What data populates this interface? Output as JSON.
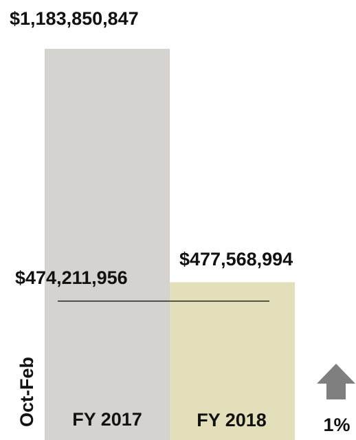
{
  "chart_data": {
    "type": "bar",
    "categories": [
      "FY 2017",
      "FY 2018"
    ],
    "values": [
      1183850847,
      477568994
    ],
    "value_labels": [
      "$1,183,850,847",
      "$477,568,994"
    ],
    "reference": {
      "value": 474211956,
      "label": "$474,211,956"
    },
    "period_label": "Oct-Feb",
    "change": {
      "direction": "up",
      "label": "1%"
    },
    "colors": {
      "FY 2017": "#d4d3cf",
      "FY 2018": "#e3dfba",
      "arrow": "#7f7f7f",
      "line": "#000000"
    }
  }
}
